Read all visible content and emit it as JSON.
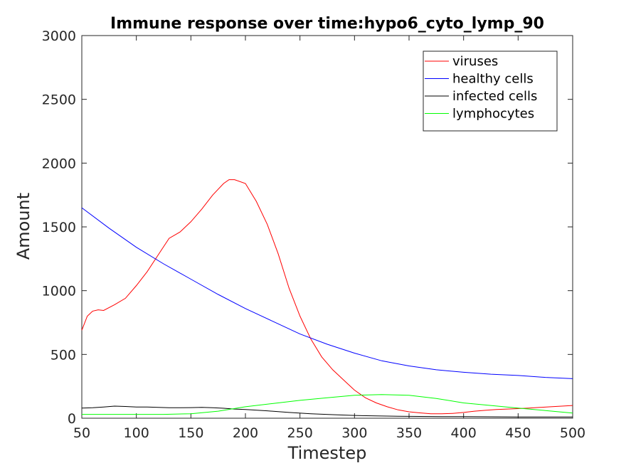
{
  "chart_data": {
    "type": "line",
    "title": "Immune response over time:hypo6_cyto_lymp_90",
    "xlabel": "Timestep",
    "ylabel": "Amount",
    "xlim": [
      50,
      500
    ],
    "ylim": [
      0,
      3000
    ],
    "xticks": [
      50,
      100,
      150,
      200,
      250,
      300,
      350,
      400,
      450,
      500
    ],
    "yticks": [
      0,
      500,
      1000,
      1500,
      2000,
      2500,
      3000
    ],
    "grid": false,
    "legend_position": "top-right",
    "series": [
      {
        "name": "viruses",
        "color": "#ff0000",
        "x": [
          50,
          55,
          60,
          65,
          70,
          80,
          90,
          100,
          110,
          120,
          130,
          140,
          150,
          160,
          170,
          180,
          185,
          190,
          200,
          210,
          220,
          230,
          240,
          250,
          260,
          270,
          280,
          290,
          300,
          310,
          320,
          330,
          340,
          350,
          360,
          370,
          380,
          390,
          400,
          410,
          420,
          430,
          440,
          450,
          460,
          470,
          480,
          490,
          500
        ],
        "y": [
          690,
          800,
          840,
          850,
          845,
          890,
          940,
          1040,
          1150,
          1280,
          1410,
          1460,
          1540,
          1640,
          1750,
          1840,
          1870,
          1870,
          1840,
          1700,
          1520,
          1290,
          1020,
          800,
          620,
          480,
          380,
          300,
          220,
          160,
          120,
          90,
          65,
          50,
          42,
          35,
          35,
          38,
          45,
          55,
          62,
          68,
          72,
          75,
          80,
          85,
          90,
          95,
          100
        ]
      },
      {
        "name": "healthy cells",
        "color": "#0000ff",
        "x": [
          50,
          75,
          100,
          125,
          150,
          175,
          200,
          225,
          250,
          275,
          300,
          325,
          350,
          375,
          400,
          425,
          450,
          475,
          500
        ],
        "y": [
          1650,
          1490,
          1340,
          1210,
          1090,
          970,
          860,
          760,
          660,
          580,
          510,
          450,
          410,
          380,
          360,
          345,
          335,
          320,
          310
        ]
      },
      {
        "name": "infected cells",
        "color": "#000000",
        "x": [
          50,
          60,
          70,
          80,
          90,
          100,
          110,
          120,
          130,
          140,
          150,
          160,
          170,
          180,
          190,
          200,
          220,
          240,
          260,
          280,
          300,
          320,
          340,
          360,
          380,
          400,
          450,
          500
        ],
        "y": [
          80,
          82,
          88,
          95,
          92,
          88,
          88,
          85,
          82,
          82,
          83,
          85,
          82,
          78,
          72,
          68,
          58,
          45,
          35,
          28,
          22,
          18,
          15,
          14,
          12,
          12,
          10,
          10
        ]
      },
      {
        "name": "lymphocytes",
        "color": "#00ff00",
        "x": [
          50,
          75,
          100,
          125,
          150,
          175,
          200,
          225,
          250,
          275,
          300,
          325,
          350,
          375,
          400,
          425,
          450,
          475,
          500
        ],
        "y": [
          30,
          30,
          30,
          30,
          35,
          55,
          90,
          115,
          140,
          160,
          180,
          185,
          180,
          155,
          120,
          100,
          80,
          60,
          40
        ]
      }
    ]
  }
}
